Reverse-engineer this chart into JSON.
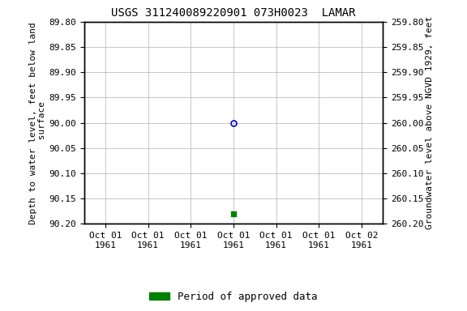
{
  "title": "USGS 311240089220901 073H0023  LAMAR",
  "title_fontsize": 10,
  "ylabel_left": "Depth to water level, feet below land\n surface",
  "ylabel_right": "Groundwater level above NGVD 1929, feet",
  "ylim_left": [
    89.8,
    90.2
  ],
  "ylim_right": [
    259.8,
    260.2
  ],
  "y_ticks_left": [
    89.8,
    89.85,
    89.9,
    89.95,
    90.0,
    90.05,
    90.1,
    90.15,
    90.2
  ],
  "y_ticks_right": [
    259.8,
    259.85,
    259.9,
    259.95,
    260.0,
    260.05,
    260.1,
    260.15,
    260.2
  ],
  "data_point_open_depth": 90.0,
  "data_point_filled_depth": 90.18,
  "open_marker_color": "#0000cc",
  "filled_marker_color": "#008000",
  "legend_label": "Period of approved data",
  "legend_color": "#008000",
  "background_color": "#ffffff",
  "grid_color": "#b0b0b0",
  "font_family": "monospace",
  "x_tick_labels": [
    "Oct 01\n1961",
    "Oct 01\n1961",
    "Oct 01\n1961",
    "Oct 01\n1961",
    "Oct 01\n1961",
    "Oct 01\n1961",
    "Oct 02\n1961"
  ],
  "x_tick_positions": [
    0.0,
    1.0,
    2.0,
    3.0,
    4.0,
    5.0,
    6.0
  ],
  "open_x": 3.0,
  "filled_x": 3.0
}
